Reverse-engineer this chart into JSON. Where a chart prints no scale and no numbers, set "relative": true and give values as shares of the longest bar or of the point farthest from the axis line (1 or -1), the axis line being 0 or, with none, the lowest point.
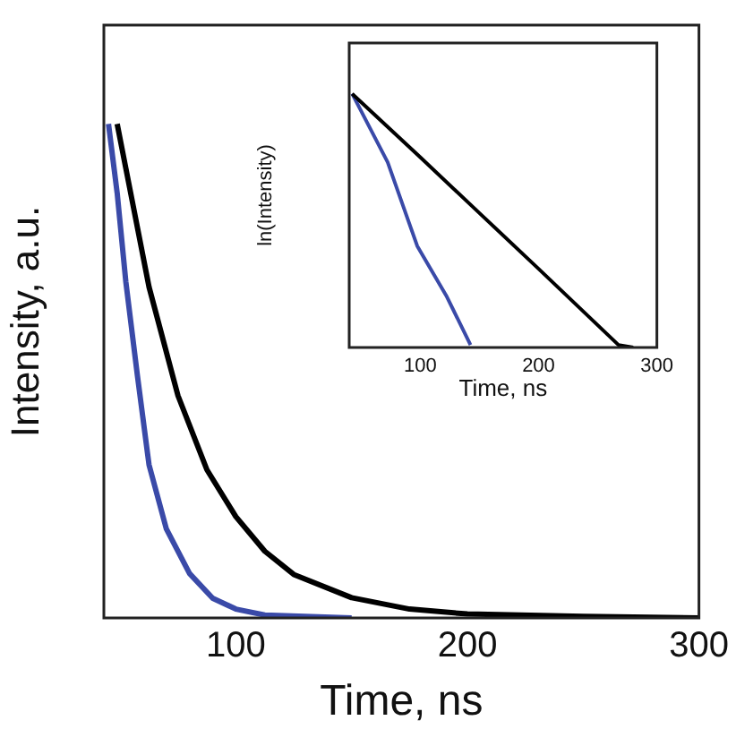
{
  "chart_data": [
    {
      "type": "line",
      "xlabel": "Time, ns",
      "ylabel": "Intensity, a.u.",
      "relative": true,
      "tick_labels": "x",
      "xlim": [
        43,
        300
      ],
      "xticks": [
        100,
        200,
        300
      ],
      "series": [
        {
          "color": "#000000",
          "x": [
            48.75,
            52.5,
            62.5,
            75,
            87.5,
            100,
            112.5,
            125,
            150,
            175,
            200,
            250,
            300
          ],
          "values": [
            1.0,
            0.91,
            0.67,
            0.45,
            0.3,
            0.205,
            0.135,
            0.088,
            0.041,
            0.018,
            0.008,
            0.003,
            0.0
          ]
        },
        {
          "color": "#3a4aa8",
          "x": [
            45,
            48.75,
            52.5,
            57.5,
            62.5,
            70,
            80,
            90,
            100,
            112.5,
            150
          ],
          "values": [
            1.0,
            0.86,
            0.68,
            0.49,
            0.31,
            0.18,
            0.09,
            0.04,
            0.018,
            0.006,
            0.0
          ]
        }
      ]
    },
    {
      "type": "line",
      "xlabel": "Time, ns",
      "ylabel": "ln(Intensity)",
      "relative": true,
      "tick_labels": "x",
      "xlim": [
        40,
        300
      ],
      "xticks": [
        100,
        200,
        300
      ],
      "series": [
        {
          "color": "#000000",
          "x": [
            42.5,
            100,
            150,
            200,
            267.5,
            280
          ],
          "values": [
            1.0,
            0.75,
            0.53,
            0.31,
            0.01,
            0.0
          ]
        },
        {
          "color": "#3a4aa8",
          "x": [
            42.5,
            72.5,
            97.5,
            122.5,
            142.5
          ],
          "values": [
            1.0,
            0.73,
            0.4,
            0.2,
            0.01
          ]
        }
      ]
    }
  ]
}
